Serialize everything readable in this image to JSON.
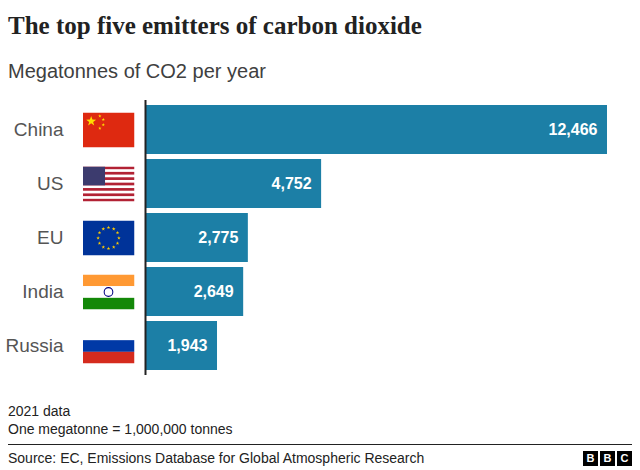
{
  "chart_data": {
    "type": "bar",
    "orientation": "horizontal",
    "title": "The top five emitters of carbon dioxide",
    "subtitle": "Megatonnes of CO2 per year",
    "categories": [
      "China",
      "US",
      "EU",
      "India",
      "Russia"
    ],
    "values": [
      12466,
      4752,
      2775,
      2649,
      1943
    ],
    "value_labels": [
      "12,466",
      "4,752",
      "2,775",
      "2,649",
      "1,943"
    ],
    "data_labels": true,
    "color": "#1c7fa6",
    "xlim": [
      0,
      12466
    ],
    "tick_labels": "y",
    "grid": false,
    "notes": [
      "2021 data",
      "One megatonne = 1,000,000 tonnes"
    ],
    "source": "Source: EC, Emissions Database for Global Atmospheric Research",
    "logo": "BBC"
  }
}
